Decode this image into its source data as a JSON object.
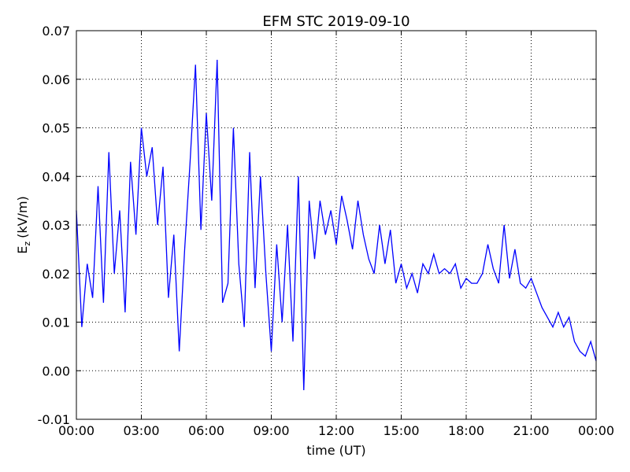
{
  "chart_data": {
    "type": "line",
    "title": "EFM STC    2019-09-10",
    "x_label": "time (UT)",
    "y_label": {
      "symbol": "E",
      "subscript": "z",
      "unit": "(kV/m)"
    },
    "xlim": [
      0,
      24
    ],
    "xticks": [
      {
        "value": 0,
        "label": "00:00"
      },
      {
        "value": 3,
        "label": "03:00"
      },
      {
        "value": 6,
        "label": "06:00"
      },
      {
        "value": 9,
        "label": "09:00"
      },
      {
        "value": 12,
        "label": "12:00"
      },
      {
        "value": 15,
        "label": "15:00"
      },
      {
        "value": 18,
        "label": "18:00"
      },
      {
        "value": 21,
        "label": "21:00"
      },
      {
        "value": 24,
        "label": "00:00"
      }
    ],
    "ylim": [
      -0.01,
      0.07
    ],
    "yticks": [
      -0.01,
      {
        "value": 0,
        "label": "0.00"
      },
      0.01,
      0.02,
      0.03,
      0.04,
      0.05,
      0.06,
      0.07
    ],
    "grid": true,
    "series": [
      {
        "color": "#0000ff",
        "x": [
          0,
          0.25,
          0.5,
          0.75,
          1,
          1.25,
          1.5,
          1.75,
          2,
          2.25,
          2.5,
          2.75,
          3,
          3.25,
          3.5,
          3.75,
          4,
          4.25,
          4.5,
          4.75,
          5,
          5.25,
          5.5,
          5.75,
          6,
          6.25,
          6.5,
          6.75,
          7,
          7.25,
          7.5,
          7.75,
          8,
          8.25,
          8.5,
          8.75,
          9,
          9.25,
          9.5,
          9.75,
          10,
          10.25,
          10.5,
          10.75,
          11,
          11.25,
          11.5,
          11.75,
          12,
          12.25,
          12.5,
          12.75,
          13,
          13.25,
          13.5,
          13.75,
          14,
          14.25,
          14.5,
          14.75,
          15,
          15.25,
          15.5,
          15.75,
          16,
          16.25,
          16.5,
          16.75,
          17,
          17.25,
          17.5,
          17.75,
          18,
          18.25,
          18.5,
          18.75,
          19,
          19.25,
          19.5,
          19.75,
          20,
          20.25,
          20.5,
          20.75,
          21,
          21.25,
          21.5,
          21.75,
          22,
          22.25,
          22.5,
          22.75,
          23,
          23.25,
          23.5,
          23.75,
          24
        ],
        "values": [
          0.033,
          0.009,
          0.022,
          0.015,
          0.038,
          0.014,
          0.045,
          0.02,
          0.033,
          0.012,
          0.043,
          0.028,
          0.05,
          0.04,
          0.046,
          0.03,
          0.042,
          0.015,
          0.028,
          0.004,
          0.025,
          0.043,
          0.063,
          0.029,
          0.053,
          0.035,
          0.064,
          0.014,
          0.018,
          0.05,
          0.022,
          0.009,
          0.045,
          0.017,
          0.04,
          0.02,
          0.004,
          0.026,
          0.01,
          0.03,
          0.006,
          0.04,
          -0.004,
          0.035,
          0.023,
          0.035,
          0.028,
          0.033,
          0.026,
          0.036,
          0.031,
          0.025,
          0.035,
          0.028,
          0.023,
          0.02,
          0.03,
          0.022,
          0.029,
          0.018,
          0.022,
          0.017,
          0.02,
          0.016,
          0.022,
          0.02,
          0.024,
          0.02,
          0.021,
          0.02,
          0.022,
          0.017,
          0.019,
          0.018,
          0.018,
          0.02,
          0.026,
          0.021,
          0.018,
          0.03,
          0.019,
          0.025,
          0.018,
          0.017,
          0.019,
          0.016,
          0.013,
          0.011,
          0.009,
          0.012,
          0.009,
          0.011,
          0.006,
          0.004,
          0.003,
          0.006,
          0.002
        ]
      }
    ]
  }
}
